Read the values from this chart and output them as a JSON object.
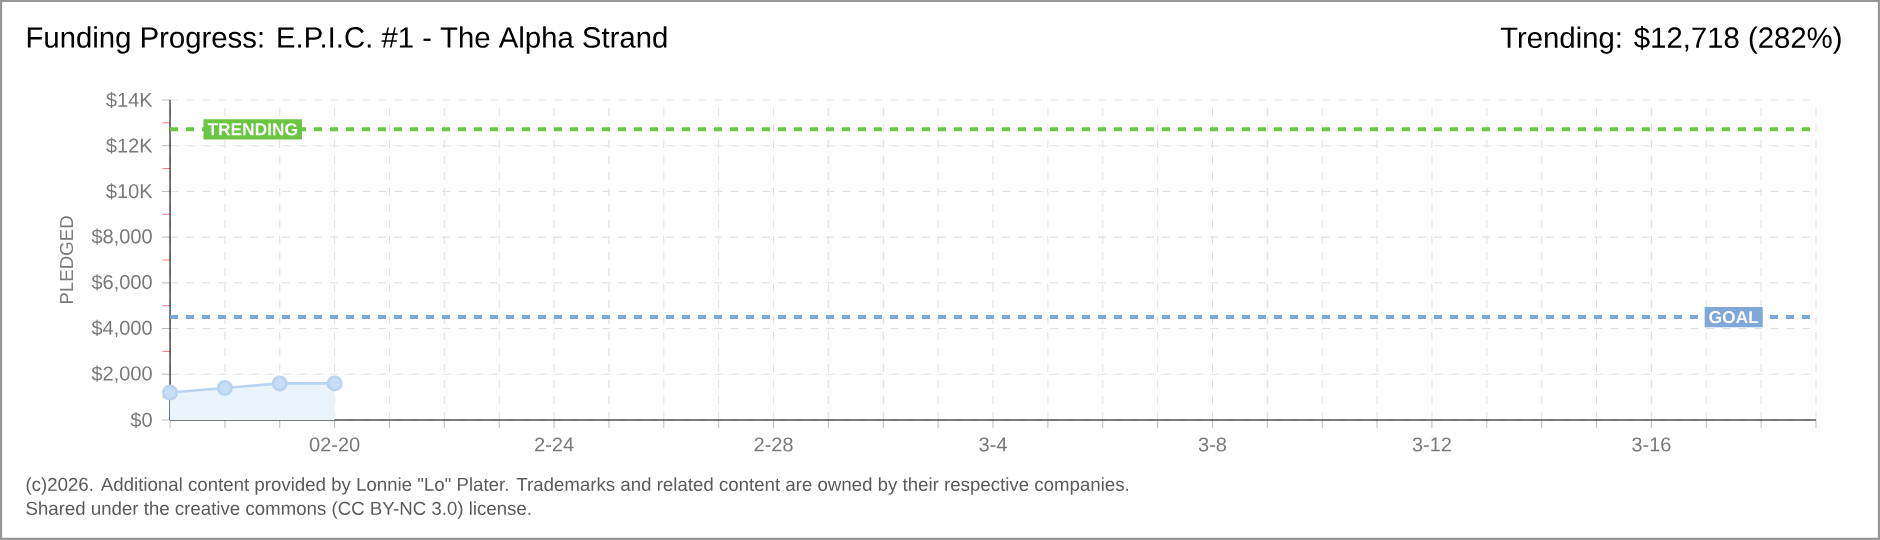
{
  "chart_data": {
    "type": "area",
    "title": "Funding Progress: E.P.I.C. #1 - The Alpha Strand",
    "subtitle": "Trending: $12,718 (282%)",
    "ylabel": "PLEDGED",
    "x": [
      "2026-02-17",
      "2026-02-18",
      "2026-02-19",
      "2026-02-20"
    ],
    "series": [
      {
        "color": "#b8d4f2",
        "values": [
          1200,
          1400,
          1600,
          1600
        ]
      }
    ],
    "marker": "circle",
    "grid": true,
    "xlim": [
      "2026-02-17",
      "2026-03-19"
    ],
    "xticks": [
      {
        "value": "2026-02-17",
        "label": null
      },
      {
        "value": "2026-02-18",
        "label": null
      },
      {
        "value": "2026-02-19",
        "label": null
      },
      {
        "value": "2026-02-20",
        "label": "02-20"
      },
      {
        "value": "2026-02-21",
        "label": null
      },
      {
        "value": "2026-02-22",
        "label": null
      },
      {
        "value": "2026-02-23",
        "label": null
      },
      {
        "value": "2026-02-24",
        "label": "2-24"
      },
      {
        "value": "2026-02-25",
        "label": null
      },
      {
        "value": "2026-02-26",
        "label": null
      },
      {
        "value": "2026-02-27",
        "label": null
      },
      {
        "value": "2026-02-28",
        "label": "2-28"
      },
      {
        "value": "2026-03-01",
        "label": null
      },
      {
        "value": "2026-03-02",
        "label": null
      },
      {
        "value": "2026-03-03",
        "label": null
      },
      {
        "value": "2026-03-04",
        "label": "3-4"
      },
      {
        "value": "2026-03-05",
        "label": null
      },
      {
        "value": "2026-03-06",
        "label": null
      },
      {
        "value": "2026-03-07",
        "label": null
      },
      {
        "value": "2026-03-08",
        "label": "3-8"
      },
      {
        "value": "2026-03-09",
        "label": null
      },
      {
        "value": "2026-03-10",
        "label": null
      },
      {
        "value": "2026-03-11",
        "label": null
      },
      {
        "value": "2026-03-12",
        "label": "3-12"
      },
      {
        "value": "2026-03-13",
        "label": null
      },
      {
        "value": "2026-03-14",
        "label": null
      },
      {
        "value": "2026-03-15",
        "label": null
      },
      {
        "value": "2026-03-16",
        "label": "3-16"
      },
      {
        "value": "2026-03-17",
        "label": null
      },
      {
        "value": "2026-03-18",
        "label": null
      },
      {
        "value": "2026-03-19",
        "label": null
      }
    ],
    "ylim": [
      0,
      14000
    ],
    "yticks": [
      {
        "value": 0,
        "label": "$0"
      },
      {
        "value": 2000,
        "label": "$2,000"
      },
      {
        "value": 4000,
        "label": "$4,000"
      },
      {
        "value": 6000,
        "label": "$6,000"
      },
      {
        "value": 8000,
        "label": "$8,000"
      },
      {
        "value": 10000,
        "label": "$10K"
      },
      {
        "value": 12000,
        "label": "$12K"
      },
      {
        "value": 14000,
        "label": "$14K"
      }
    ],
    "ref_lines": [
      {
        "axis": "y",
        "value": 12718,
        "label": "TRENDING",
        "color": "#6cc644",
        "line_style": "dashed"
      },
      {
        "axis": "y",
        "value": 4500,
        "label": "GOAL",
        "color": "#7fa7d8",
        "line_style": "dashed"
      }
    ],
    "annotations": [
      "(c)2026. Additional content provided by Lonnie \"Lo\" Plater. Trademarks and related content are owned by their respective companies.",
      "Shared under the creative commons (CC BY-NC 3.0) license."
    ]
  }
}
